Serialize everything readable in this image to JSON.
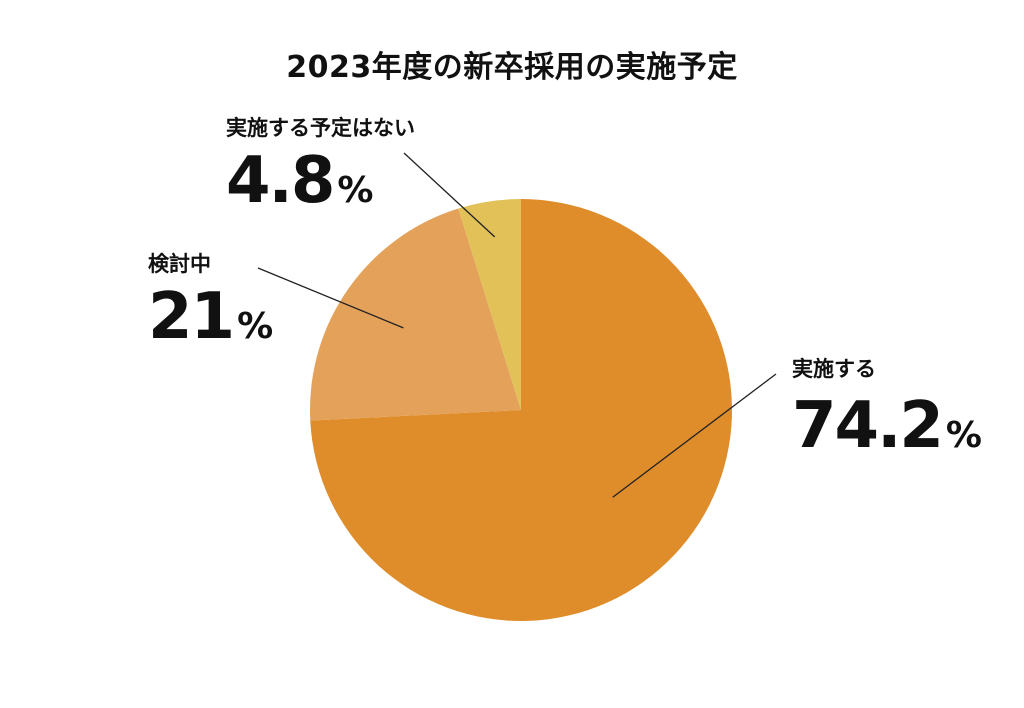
{
  "chart_data": {
    "type": "pie",
    "title": "2023年度の新卒採用の実施予定",
    "slices": [
      {
        "label": "実施する",
        "value": 74.2,
        "value_text": "74.2",
        "unit": "%",
        "color": "#DF8D2B"
      },
      {
        "label": "検討中",
        "value": 21,
        "value_text": "21",
        "unit": "%",
        "color": "#E3A15A"
      },
      {
        "label": "実施する予定はない",
        "value": 4.8,
        "value_text": "4.8",
        "unit": "%",
        "color": "#E1C158"
      }
    ],
    "start_angle": "12 o'clock",
    "direction": "clockwise",
    "legend": "none",
    "label_style": "external labels with leader lines"
  }
}
